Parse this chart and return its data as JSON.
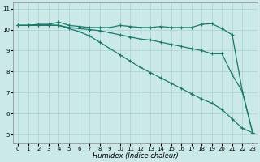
{
  "xlabel": "Humidex (Indice chaleur)",
  "background_color": "#cce9e9",
  "grid_color": "#aed4d4",
  "line_color": "#1a7a6a",
  "xlim": [
    -0.5,
    23.5
  ],
  "ylim": [
    4.6,
    11.3
  ],
  "yticks": [
    5,
    6,
    7,
    8,
    9,
    10,
    11
  ],
  "xticks": [
    0,
    1,
    2,
    3,
    4,
    5,
    6,
    7,
    8,
    9,
    10,
    11,
    12,
    13,
    14,
    15,
    16,
    17,
    18,
    19,
    20,
    21,
    22,
    23
  ],
  "line1_x": [
    0,
    1,
    2,
    3,
    4,
    5,
    6,
    7,
    8,
    9,
    10,
    11,
    12,
    13,
    14,
    15,
    16,
    17,
    18,
    19,
    20,
    21,
    22,
    23
  ],
  "line1_y": [
    10.2,
    10.2,
    10.25,
    10.25,
    10.35,
    10.2,
    10.15,
    10.1,
    10.1,
    10.1,
    10.2,
    10.15,
    10.1,
    10.1,
    10.15,
    10.1,
    10.1,
    10.1,
    10.25,
    10.28,
    10.05,
    9.75,
    7.05,
    5.1
  ],
  "line2_x": [
    0,
    1,
    2,
    3,
    4,
    5,
    6,
    7,
    8,
    9,
    10,
    11,
    12,
    13,
    14,
    15,
    16,
    17,
    18,
    19,
    20,
    21,
    22,
    23
  ],
  "line2_y": [
    10.2,
    10.2,
    10.22,
    10.22,
    10.2,
    10.1,
    10.05,
    10.0,
    9.95,
    9.85,
    9.75,
    9.65,
    9.55,
    9.5,
    9.4,
    9.3,
    9.2,
    9.1,
    9.0,
    8.85,
    8.85,
    7.85,
    7.05,
    5.1
  ],
  "line3_x": [
    0,
    1,
    2,
    3,
    4,
    5,
    6,
    7,
    8,
    9,
    10,
    11,
    12,
    13,
    14,
    15,
    16,
    17,
    18,
    19,
    20,
    21,
    22,
    23
  ],
  "line3_y": [
    10.2,
    10.2,
    10.2,
    10.2,
    10.2,
    10.05,
    9.9,
    9.7,
    9.4,
    9.1,
    8.8,
    8.5,
    8.2,
    7.95,
    7.7,
    7.45,
    7.2,
    6.95,
    6.7,
    6.5,
    6.2,
    5.75,
    5.3,
    5.1
  ]
}
